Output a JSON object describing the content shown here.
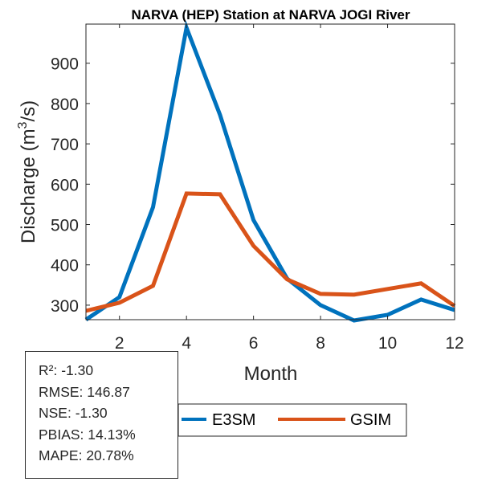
{
  "chart_data": {
    "type": "line",
    "title": "NARVA (HEP)  Station at  NARVA JOGI  River",
    "xlabel": "Month",
    "ylabel_main": "Discharge (m",
    "ylabel_sup": "3",
    "ylabel_end": "/s)",
    "x": [
      1,
      2,
      3,
      4,
      5,
      6,
      7,
      8,
      9,
      10,
      11,
      12
    ],
    "xlim": [
      1,
      12
    ],
    "ylim": [
      264,
      997
    ],
    "xticks": [
      2,
      4,
      6,
      8,
      10,
      12
    ],
    "xtick_labels": [
      "2",
      "4",
      "6",
      "8",
      "10",
      "12"
    ],
    "yticks": [
      300,
      400,
      500,
      600,
      700,
      800,
      900
    ],
    "ytick_labels": [
      "300",
      "400",
      "500",
      "600",
      "700",
      "800",
      "900"
    ],
    "grid": false,
    "series": [
      {
        "name": "E3SM",
        "color": "#0072BD",
        "values": [
          264,
          320,
          543,
          988,
          772,
          511,
          366,
          300,
          262,
          276,
          314,
          288
        ]
      },
      {
        "name": "GSIM",
        "color": "#D95319",
        "values": [
          286,
          306,
          348,
          577,
          575,
          447,
          364,
          328,
          326,
          340,
          354,
          298
        ]
      }
    ],
    "legend": {
      "placement": "bottom-outside",
      "orientation": "horizontal",
      "entries": [
        "E3SM",
        "GSIM"
      ]
    }
  },
  "stats": {
    "lines": [
      "R²: -1.30",
      "RMSE: 146.87",
      "NSE: -1.30",
      "PBIAS: 14.13%",
      "MAPE: 20.78%"
    ]
  }
}
